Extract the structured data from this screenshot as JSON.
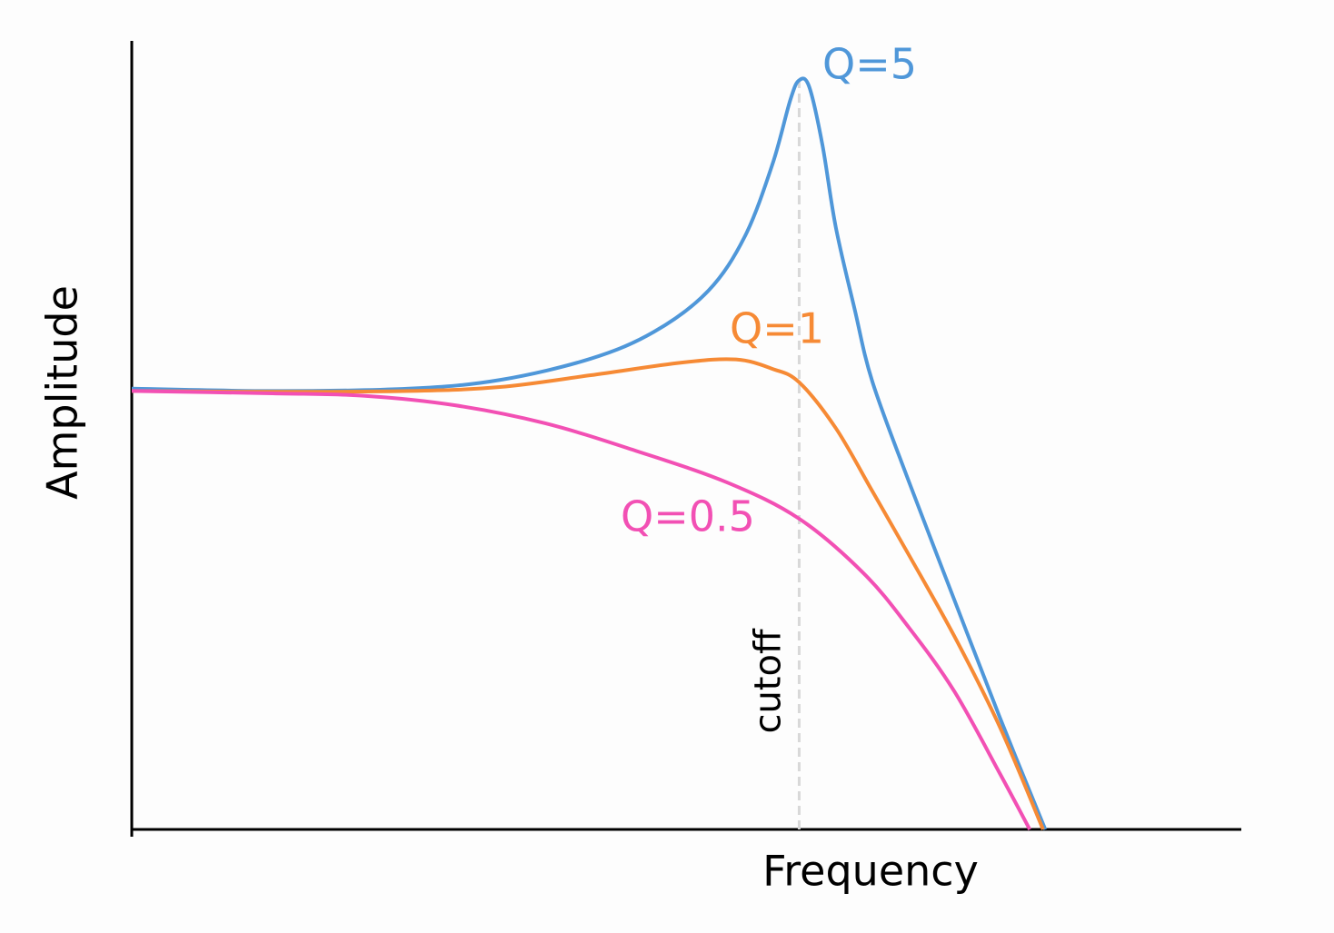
{
  "chart_data": {
    "type": "line",
    "xlabel": "Frequency",
    "ylabel": "Amplitude",
    "xlim": [
      0,
      100
    ],
    "ylim": [
      0,
      100
    ],
    "series": [
      {
        "name": "Q=5",
        "color": "#4f97d9",
        "x": [
          0,
          12.7,
          25.0,
          33.2,
          41.4,
          47.1,
          52.0,
          55.3,
          57.8,
          59.4,
          60.2,
          61.1,
          62.3,
          63.5,
          65.2,
          66.8,
          70.1,
          74.2,
          78.3,
          82.4
        ],
        "values": [
          55.9,
          55.6,
          55.9,
          57.0,
          59.7,
          63.1,
          68.3,
          75.2,
          84.4,
          92.5,
          95.0,
          94.2,
          86.8,
          76.4,
          66.0,
          56.8,
          44.1,
          29.1,
          14.2,
          0
        ]
      },
      {
        "name": "Q=1",
        "color": "#f68a35",
        "x": [
          0,
          12.7,
          25.0,
          33.2,
          41.4,
          49.6,
          54.5,
          57.8,
          60.2,
          63.5,
          66.8,
          70.1,
          74.2,
          78.3,
          82.2
        ],
        "values": [
          55.6,
          55.5,
          55.6,
          56.1,
          57.6,
          59.2,
          59.6,
          58.4,
          56.7,
          50.9,
          42.9,
          34.8,
          24.5,
          13.0,
          0
        ]
      },
      {
        "name": "Q=0.5",
        "color": "#f250b4",
        "x": [
          0,
          12.7,
          20.9,
          29.1,
          37.3,
          45.5,
          53.7,
          60.2,
          66.0,
          70.1,
          74.2,
          78.3,
          81.0
        ],
        "values": [
          55.6,
          55.3,
          55.0,
          53.8,
          51.5,
          48.0,
          44.0,
          39.4,
          32.5,
          25.6,
          17.5,
          7.1,
          0
        ]
      }
    ],
    "cutoff": {
      "x": 60.2,
      "label": "cutoff"
    }
  }
}
